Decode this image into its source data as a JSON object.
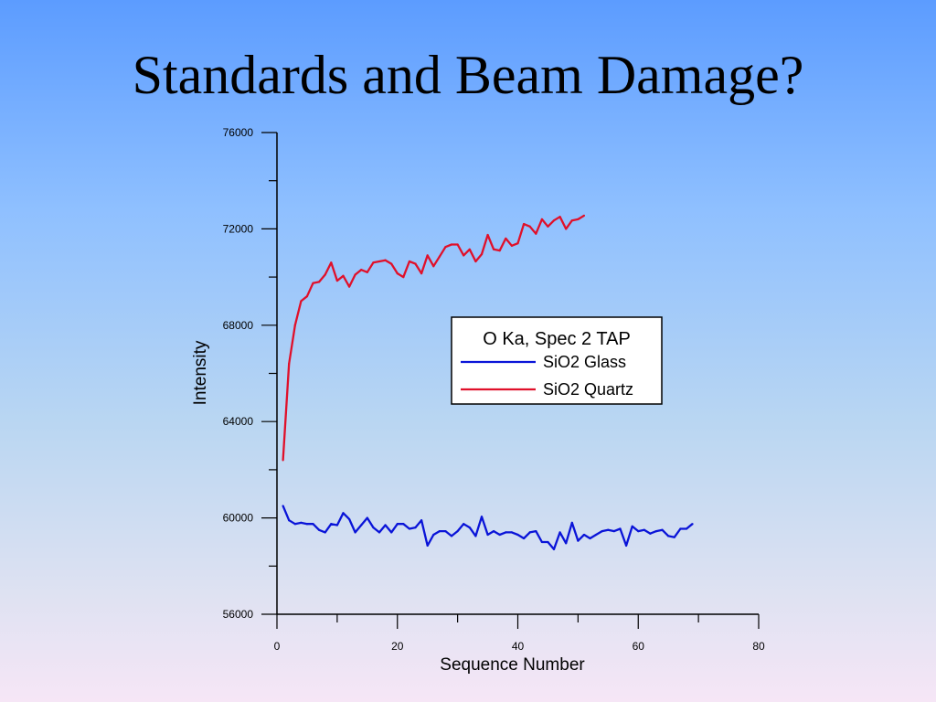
{
  "slide": {
    "title": "Standards and Beam Damage?"
  },
  "colors": {
    "glass": "#0a14d8",
    "quartz": "#e0102a",
    "axis": "#000000"
  },
  "chart_data": {
    "type": "line",
    "title": "",
    "xlabel": "Sequence Number",
    "ylabel": "Intensity",
    "xlim": [
      0,
      80
    ],
    "ylim": [
      56000,
      76000
    ],
    "x_ticks": [
      0,
      20,
      40,
      60,
      80
    ],
    "y_ticks": [
      56000,
      60000,
      64000,
      68000,
      72000,
      76000
    ],
    "grid": false,
    "legend": {
      "title": "O Ka, Spec 2 TAP",
      "placement": "center-right",
      "entries": [
        "SiO2 Glass",
        "SiO2 Quartz"
      ]
    },
    "series": [
      {
        "name": "SiO2 Glass",
        "color": "#0a14d8",
        "x": [
          1,
          2,
          3,
          4,
          5,
          6,
          7,
          8,
          9,
          10,
          11,
          12,
          13,
          14,
          15,
          16,
          17,
          18,
          19,
          20,
          21,
          22,
          23,
          24,
          25,
          26,
          27,
          28,
          29,
          30,
          31,
          32,
          33,
          34,
          35,
          36,
          37,
          38,
          39,
          40,
          41,
          42,
          43,
          44,
          45,
          46,
          47,
          48,
          49,
          50,
          51,
          52,
          53,
          54,
          55,
          56,
          57,
          58,
          59,
          60,
          61,
          62,
          63,
          64,
          65,
          66,
          67,
          68,
          69
        ],
        "y": [
          60500,
          59900,
          59750,
          59800,
          59750,
          59750,
          59500,
          59400,
          59750,
          59700,
          60200,
          59950,
          59400,
          59700,
          60000,
          59600,
          59400,
          59700,
          59400,
          59750,
          59750,
          59550,
          59600,
          59900,
          58850,
          59300,
          59450,
          59450,
          59250,
          59450,
          59750,
          59600,
          59250,
          60050,
          59300,
          59450,
          59300,
          59400,
          59400,
          59300,
          59150,
          59400,
          59450,
          59000,
          59000,
          58700,
          59400,
          58950,
          59800,
          59050,
          59300,
          59150,
          59300,
          59450,
          59500,
          59450,
          59550,
          58850,
          59650,
          59450,
          59500,
          59350,
          59450,
          59500,
          59250,
          59200,
          59550,
          59550,
          59750
        ]
      },
      {
        "name": "SiO2 Quartz",
        "color": "#e0102a",
        "x": [
          1,
          2,
          3,
          4,
          5,
          6,
          7,
          8,
          9,
          10,
          11,
          12,
          13,
          14,
          15,
          16,
          17,
          18,
          19,
          20,
          21,
          22,
          23,
          24,
          25,
          26,
          27,
          28,
          29,
          30,
          31,
          32,
          33,
          34,
          35,
          36,
          37,
          38,
          39,
          40,
          41,
          42,
          43,
          44,
          45,
          46,
          47,
          48,
          49,
          50,
          51
        ],
        "y": [
          62400,
          66400,
          68000,
          69000,
          69200,
          69750,
          69800,
          70100,
          70600,
          69850,
          70050,
          69600,
          70100,
          70300,
          70200,
          70600,
          70650,
          70700,
          70550,
          70150,
          70000,
          70650,
          70550,
          70150,
          70900,
          70450,
          70850,
          71250,
          71350,
          71350,
          70900,
          71150,
          70650,
          70950,
          71750,
          71150,
          71100,
          71600,
          71300,
          71400,
          72200,
          72100,
          71800,
          72400,
          72100,
          72350,
          72500,
          72000,
          72350,
          72400,
          72550
        ]
      }
    ]
  }
}
